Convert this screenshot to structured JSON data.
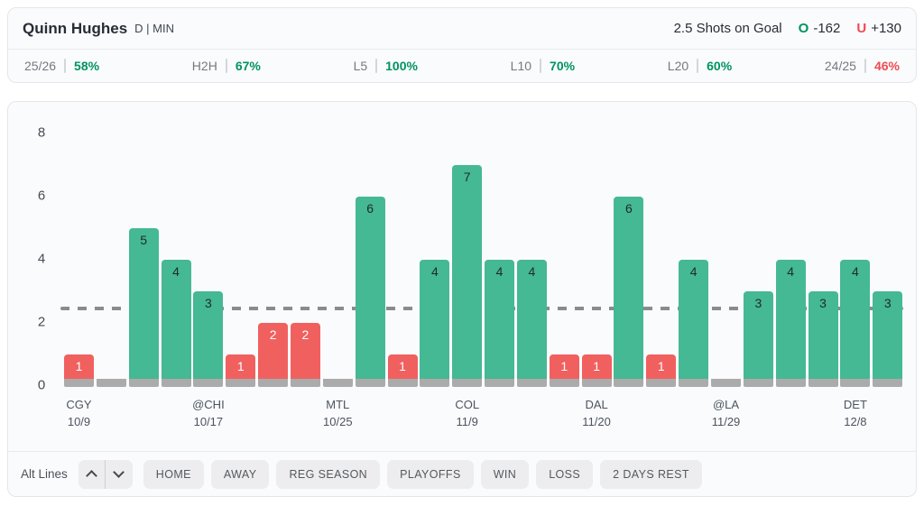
{
  "header": {
    "player_name": "Quinn Hughes",
    "position_team": "D | MIN",
    "prop_label": "2.5 Shots on Goal",
    "over_letter": "O",
    "over_odds": "-162",
    "under_letter": "U",
    "under_odds": "+130"
  },
  "splits": [
    {
      "label": "25/26",
      "value": "58%",
      "tone": "green"
    },
    {
      "label": "H2H",
      "value": "67%",
      "tone": "green"
    },
    {
      "label": "L5",
      "value": "100%",
      "tone": "green"
    },
    {
      "label": "L10",
      "value": "70%",
      "tone": "green"
    },
    {
      "label": "L20",
      "value": "60%",
      "tone": "green"
    },
    {
      "label": "24/25",
      "value": "46%",
      "tone": "red"
    }
  ],
  "chart_data": {
    "type": "bar",
    "ylabel": "",
    "xlabel": "",
    "ylim": [
      0,
      8
    ],
    "yticks": [
      0,
      2,
      4,
      6,
      8
    ],
    "reference_line": 2.5,
    "legend": "green bars = over 2.5, red bars = under 2.5, gray stub = 0",
    "bars": [
      {
        "value": 1,
        "tone": "under",
        "opponent": "CGY",
        "date": "10/9"
      },
      {
        "value": 0,
        "tone": "zero"
      },
      {
        "value": 5,
        "tone": "over"
      },
      {
        "value": 4,
        "tone": "over"
      },
      {
        "value": 3,
        "tone": "over",
        "opponent": "@CHI",
        "date": "10/17"
      },
      {
        "value": 1,
        "tone": "under"
      },
      {
        "value": 2,
        "tone": "under"
      },
      {
        "value": 2,
        "tone": "under"
      },
      {
        "value": 0,
        "tone": "zero",
        "opponent": "MTL",
        "date": "10/25"
      },
      {
        "value": 6,
        "tone": "over"
      },
      {
        "value": 1,
        "tone": "under"
      },
      {
        "value": 4,
        "tone": "over"
      },
      {
        "value": 7,
        "tone": "over",
        "opponent": "COL",
        "date": "11/9"
      },
      {
        "value": 4,
        "tone": "over"
      },
      {
        "value": 4,
        "tone": "over"
      },
      {
        "value": 1,
        "tone": "under"
      },
      {
        "value": 1,
        "tone": "under",
        "opponent": "DAL",
        "date": "11/20"
      },
      {
        "value": 6,
        "tone": "over"
      },
      {
        "value": 1,
        "tone": "under"
      },
      {
        "value": 4,
        "tone": "over"
      },
      {
        "value": 0,
        "tone": "zero",
        "opponent": "@LA",
        "date": "11/29"
      },
      {
        "value": 3,
        "tone": "over"
      },
      {
        "value": 4,
        "tone": "over"
      },
      {
        "value": 3,
        "tone": "over"
      },
      {
        "value": 4,
        "tone": "over",
        "opponent": "DET",
        "date": "12/8"
      },
      {
        "value": 3,
        "tone": "over"
      }
    ]
  },
  "footer": {
    "alt_lines_label": "Alt Lines",
    "filters": [
      "HOME",
      "AWAY",
      "REG SEASON",
      "PLAYOFFS",
      "WIN",
      "LOSS",
      "2 DAYS REST"
    ]
  },
  "colors": {
    "over_bar": "#45b894",
    "under_bar": "#f0605f",
    "zero_bar": "#ababab",
    "bar_base": "#ababab",
    "over_bar_label": "#1e2b27",
    "under_bar_label": "#ffffff",
    "reference_line": "#8b8b8b",
    "green_text": "#00935f",
    "red_text": "#ee4b50"
  }
}
